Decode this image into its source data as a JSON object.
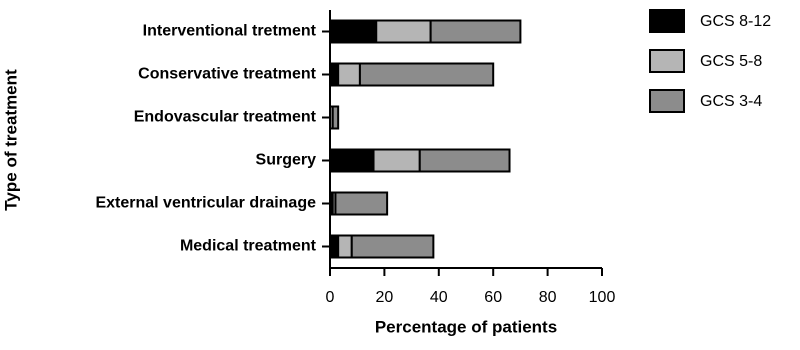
{
  "chart_data": {
    "type": "stacked-bar-horizontal",
    "y_label": "Type of treatment",
    "x_label": "Percentage of patients",
    "categories": [
      "Interventional tretment",
      "Conservative treatment",
      "Endovascular treatment",
      "Surgery",
      "External ventricular drainage",
      "Medical treatment"
    ],
    "series": [
      {
        "name": "GCS 8-12",
        "color": "#000000",
        "values": [
          17,
          3,
          0,
          16,
          1,
          3
        ]
      },
      {
        "name": "GCS 5-8",
        "color": "#b5b5b5",
        "values": [
          20,
          8,
          1,
          17,
          1,
          5
        ]
      },
      {
        "name": "GCS 3-4",
        "color": "#8c8c8c",
        "values": [
          33,
          49,
          2,
          33,
          19,
          30
        ]
      }
    ],
    "xlim": [
      0,
      100
    ],
    "xticks": [
      0,
      20,
      40,
      60,
      80,
      100
    ]
  }
}
